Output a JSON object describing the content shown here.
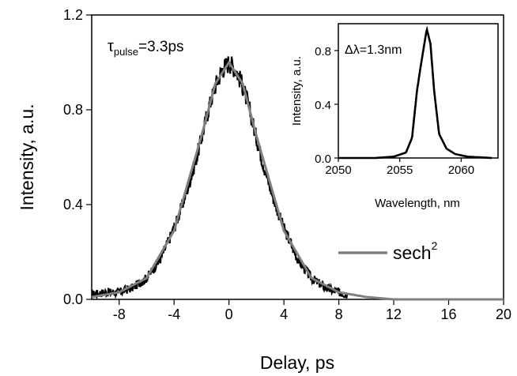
{
  "chart_data": [
    {
      "type": "line",
      "xlabel": "Delay, ps",
      "ylabel": "Intensity, a.u.",
      "xlim": [
        -10,
        20
      ],
      "ylim": [
        0,
        1.2
      ],
      "xticks": [
        -8,
        -4,
        0,
        4,
        8,
        12,
        16,
        20
      ],
      "yticks": [
        0.0,
        0.4,
        0.8,
        1.2
      ],
      "ytick_labels": [
        "0.0",
        "0.4",
        "0.8",
        "1.2"
      ],
      "series": [
        {
          "color": "#000000",
          "style": "noisy measured autocorrelation trace",
          "x": [
            -10,
            -9,
            -8,
            -7,
            -6,
            -5,
            -4,
            -3.5,
            -3,
            -2.5,
            -2,
            -1.5,
            -1,
            -0.5,
            0,
            0.5,
            1,
            1.5,
            2,
            2.5,
            3,
            3.5,
            4,
            5,
            6,
            7,
            8,
            8.6
          ],
          "y": [
            0.02,
            0.03,
            0.03,
            0.05,
            0.09,
            0.17,
            0.3,
            0.38,
            0.47,
            0.57,
            0.68,
            0.8,
            0.9,
            0.97,
            1.0,
            0.97,
            0.9,
            0.8,
            0.68,
            0.57,
            0.47,
            0.38,
            0.3,
            0.17,
            0.09,
            0.05,
            0.03,
            0.02
          ]
        },
        {
          "name": "sech",
          "name_superscript": "2",
          "color": "#808080",
          "function": "sech^2 fit",
          "x": [
            -10,
            -8,
            -6,
            -4,
            -2,
            -1,
            0,
            1,
            2,
            4,
            6,
            8,
            10,
            12,
            14,
            16,
            18,
            20
          ],
          "y": [
            0.01,
            0.03,
            0.09,
            0.29,
            0.69,
            0.91,
            1.0,
            0.91,
            0.69,
            0.29,
            0.09,
            0.03,
            0.01,
            0.0,
            0.0,
            0.0,
            0.0,
            0.0
          ]
        }
      ],
      "annotations": [
        {
          "text_main": "τ",
          "text_sub": "pulse",
          "text_rest": "=3.3ps"
        }
      ],
      "legend": {
        "placement": "right",
        "entries": [
          "sech2"
        ]
      }
    },
    {
      "type": "line",
      "inset": true,
      "xlabel": "Wavelength, nm",
      "ylabel": "Intensity, a.u.",
      "xlim": [
        2050,
        2063
      ],
      "ylim": [
        0,
        1.0
      ],
      "xticks": [
        2050,
        2055,
        2060
      ],
      "yticks": [
        0.0,
        0.4,
        0.8
      ],
      "ytick_labels": [
        "0.0",
        "0.4",
        "0.8"
      ],
      "series": [
        {
          "color": "#000000",
          "x": [
            2050,
            2053,
            2054.5,
            2055.5,
            2056,
            2056.4,
            2056.7,
            2057.0,
            2057.2,
            2057.5,
            2057.8,
            2058.2,
            2058.8,
            2059.5,
            2060.5,
            2062.5
          ],
          "y": [
            0.0,
            0.0,
            0.01,
            0.04,
            0.15,
            0.5,
            0.68,
            0.85,
            0.96,
            0.85,
            0.5,
            0.18,
            0.07,
            0.03,
            0.01,
            0.0
          ]
        }
      ],
      "annotations": [
        {
          "text_main": "Δλ=1.3nm"
        }
      ]
    }
  ]
}
